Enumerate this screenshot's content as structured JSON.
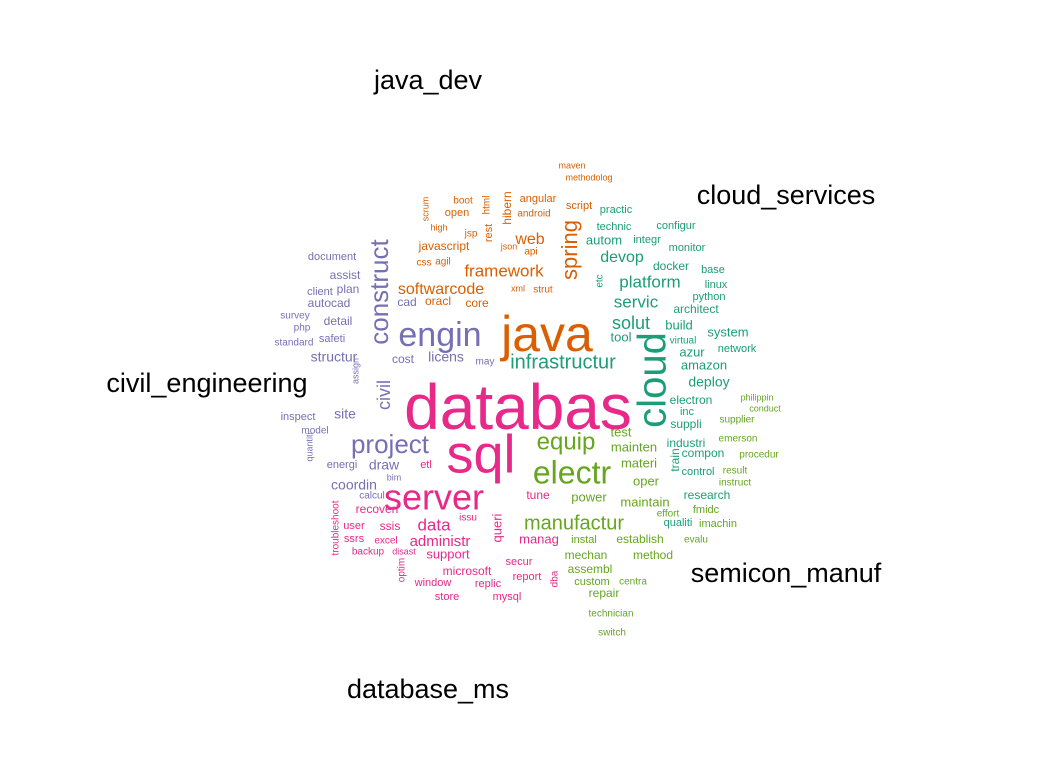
{
  "chart_data": {
    "type": "comparison-wordcloud",
    "groups": [
      {
        "name": "java_dev",
        "color": "#D95F02"
      },
      {
        "name": "cloud_services",
        "color": "#1B9E77"
      },
      {
        "name": "civil_engineering",
        "color": "#7570B3"
      },
      {
        "name": "semicon_manuf",
        "color": "#66A61E"
      },
      {
        "name": "database_ms",
        "color": "#E7298A"
      }
    ],
    "words": [
      {
        "t": "java",
        "g": "java_dev",
        "s": 50
      },
      {
        "t": "spring",
        "g": "java_dev",
        "s": 22
      },
      {
        "t": "framework",
        "g": "java_dev",
        "s": 17
      },
      {
        "t": "softwarcode",
        "g": "java_dev",
        "s": 16
      },
      {
        "t": "web",
        "g": "java_dev",
        "s": 16
      },
      {
        "t": "javascript",
        "g": "java_dev",
        "s": 12
      },
      {
        "t": "hibern",
        "g": "java_dev",
        "s": 12
      },
      {
        "t": "oracl",
        "g": "java_dev",
        "s": 12
      },
      {
        "t": "core",
        "g": "java_dev",
        "s": 12
      },
      {
        "t": "rest",
        "g": "java_dev",
        "s": 11
      },
      {
        "t": "angular",
        "g": "java_dev",
        "s": 11
      },
      {
        "t": "script",
        "g": "java_dev",
        "s": 11
      },
      {
        "t": "open",
        "g": "java_dev",
        "s": 11
      },
      {
        "t": "android",
        "g": "java_dev",
        "s": 10
      },
      {
        "t": "api",
        "g": "java_dev",
        "s": 10
      },
      {
        "t": "html",
        "g": "java_dev",
        "s": 10
      },
      {
        "t": "jsp",
        "g": "java_dev",
        "s": 10
      },
      {
        "t": "boot",
        "g": "java_dev",
        "s": 10
      },
      {
        "t": "agil",
        "g": "java_dev",
        "s": 10
      },
      {
        "t": "css",
        "g": "java_dev",
        "s": 10
      },
      {
        "t": "strut",
        "g": "java_dev",
        "s": 10
      },
      {
        "t": "scrum",
        "g": "java_dev",
        "s": 9
      },
      {
        "t": "json",
        "g": "java_dev",
        "s": 9
      },
      {
        "t": "xml",
        "g": "java_dev",
        "s": 9
      },
      {
        "t": "high",
        "g": "java_dev",
        "s": 9
      },
      {
        "t": "maven",
        "g": "java_dev",
        "s": 9
      },
      {
        "t": "methodolog",
        "g": "java_dev",
        "s": 9
      },
      {
        "t": "cloud",
        "g": "cloud_services",
        "s": 40
      },
      {
        "t": "infrastructur",
        "g": "cloud_services",
        "s": 20
      },
      {
        "t": "solut",
        "g": "cloud_services",
        "s": 18
      },
      {
        "t": "servic",
        "g": "cloud_services",
        "s": 17
      },
      {
        "t": "platform",
        "g": "cloud_services",
        "s": 17
      },
      {
        "t": "devop",
        "g": "cloud_services",
        "s": 16
      },
      {
        "t": "system",
        "g": "cloud_services",
        "s": 13
      },
      {
        "t": "build",
        "g": "cloud_services",
        "s": 13
      },
      {
        "t": "tool",
        "g": "cloud_services",
        "s": 13
      },
      {
        "t": "azur",
        "g": "cloud_services",
        "s": 13
      },
      {
        "t": "amazon",
        "g": "cloud_services",
        "s": 13
      },
      {
        "t": "deploy",
        "g": "cloud_services",
        "s": 14
      },
      {
        "t": "autom",
        "g": "cloud_services",
        "s": 13
      },
      {
        "t": "docker",
        "g": "cloud_services",
        "s": 12
      },
      {
        "t": "architect",
        "g": "cloud_services",
        "s": 12
      },
      {
        "t": "linux",
        "g": "cloud_services",
        "s": 11
      },
      {
        "t": "python",
        "g": "cloud_services",
        "s": 11
      },
      {
        "t": "base",
        "g": "cloud_services",
        "s": 11
      },
      {
        "t": "monitor",
        "g": "cloud_services",
        "s": 11
      },
      {
        "t": "configur",
        "g": "cloud_services",
        "s": 11
      },
      {
        "t": "integr",
        "g": "cloud_services",
        "s": 11
      },
      {
        "t": "technic",
        "g": "cloud_services",
        "s": 11
      },
      {
        "t": "practic",
        "g": "cloud_services",
        "s": 11
      },
      {
        "t": "network",
        "g": "cloud_services",
        "s": 11
      },
      {
        "t": "virtual",
        "g": "cloud_services",
        "s": 10
      },
      {
        "t": "etc",
        "g": "cloud_services",
        "s": 10
      },
      {
        "t": "electron",
        "g": "cloud_services",
        "s": 12
      },
      {
        "t": "suppli",
        "g": "cloud_services",
        "s": 12
      },
      {
        "t": "inc",
        "g": "cloud_services",
        "s": 11
      },
      {
        "t": "industri",
        "g": "cloud_services",
        "s": 12
      },
      {
        "t": "compon",
        "g": "cloud_services",
        "s": 12
      },
      {
        "t": "train",
        "g": "cloud_services",
        "s": 12
      },
      {
        "t": "control",
        "g": "cloud_services",
        "s": 11
      },
      {
        "t": "research",
        "g": "cloud_services",
        "s": 12
      },
      {
        "t": "qualiti",
        "g": "cloud_services",
        "s": 11
      },
      {
        "t": "construct",
        "g": "civil_engineering",
        "s": 26
      },
      {
        "t": "engin",
        "g": "civil_engineering",
        "s": 34
      },
      {
        "t": "project",
        "g": "civil_engineering",
        "s": 26
      },
      {
        "t": "civil",
        "g": "civil_engineering",
        "s": 18
      },
      {
        "t": "structur",
        "g": "civil_engineering",
        "s": 14
      },
      {
        "t": "site",
        "g": "civil_engineering",
        "s": 14
      },
      {
        "t": "draw",
        "g": "civil_engineering",
        "s": 14
      },
      {
        "t": "coordin",
        "g": "civil_engineering",
        "s": 14
      },
      {
        "t": "licens",
        "g": "civil_engineering",
        "s": 14
      },
      {
        "t": "autocad",
        "g": "civil_engineering",
        "s": 12
      },
      {
        "t": "detail",
        "g": "civil_engineering",
        "s": 12
      },
      {
        "t": "assist",
        "g": "civil_engineering",
        "s": 12
      },
      {
        "t": "plan",
        "g": "civil_engineering",
        "s": 12
      },
      {
        "t": "cad",
        "g": "civil_engineering",
        "s": 12
      },
      {
        "t": "cost",
        "g": "civil_engineering",
        "s": 12
      },
      {
        "t": "safeti",
        "g": "civil_engineering",
        "s": 11
      },
      {
        "t": "client",
        "g": "civil_engineering",
        "s": 11
      },
      {
        "t": "document",
        "g": "civil_engineering",
        "s": 11
      },
      {
        "t": "survey",
        "g": "civil_engineering",
        "s": 10
      },
      {
        "t": "php",
        "g": "civil_engineering",
        "s": 10
      },
      {
        "t": "standard",
        "g": "civil_engineering",
        "s": 10
      },
      {
        "t": "inspect",
        "g": "civil_engineering",
        "s": 11
      },
      {
        "t": "model",
        "g": "civil_engineering",
        "s": 10
      },
      {
        "t": "energi",
        "g": "civil_engineering",
        "s": 11
      },
      {
        "t": "quantiti",
        "g": "civil_engineering",
        "s": 9
      },
      {
        "t": "assign",
        "g": "civil_engineering",
        "s": 9
      },
      {
        "t": "calcul",
        "g": "civil_engineering",
        "s": 10
      },
      {
        "t": "bim",
        "g": "civil_engineering",
        "s": 9
      },
      {
        "t": "may",
        "g": "civil_engineering",
        "s": 10
      },
      {
        "t": "electr",
        "g": "semicon_manuf",
        "s": 32
      },
      {
        "t": "equip",
        "g": "semicon_manuf",
        "s": 24
      },
      {
        "t": "manufactur",
        "g": "semicon_manuf",
        "s": 20
      },
      {
        "t": "materi",
        "g": "semicon_manuf",
        "s": 13
      },
      {
        "t": "mainten",
        "g": "semicon_manuf",
        "s": 13
      },
      {
        "t": "test",
        "g": "semicon_manuf",
        "s": 13
      },
      {
        "t": "oper",
        "g": "semicon_manuf",
        "s": 13
      },
      {
        "t": "maintain",
        "g": "semicon_manuf",
        "s": 13
      },
      {
        "t": "power",
        "g": "semicon_manuf",
        "s": 13
      },
      {
        "t": "establish",
        "g": "semicon_manuf",
        "s": 12
      },
      {
        "t": "mechan",
        "g": "semicon_manuf",
        "s": 12
      },
      {
        "t": "method",
        "g": "semicon_manuf",
        "s": 12
      },
      {
        "t": "assembl",
        "g": "semicon_manuf",
        "s": 12
      },
      {
        "t": "instal",
        "g": "semicon_manuf",
        "s": 11
      },
      {
        "t": "custom",
        "g": "semicon_manuf",
        "s": 11
      },
      {
        "t": "repair",
        "g": "semicon_manuf",
        "s": 12
      },
      {
        "t": "centra",
        "g": "semicon_manuf",
        "s": 10
      },
      {
        "t": "technician",
        "g": "semicon_manuf",
        "s": 10
      },
      {
        "t": "switch",
        "g": "semicon_manuf",
        "s": 10
      },
      {
        "t": "fmidc",
        "g": "semicon_manuf",
        "s": 11
      },
      {
        "t": "imachin",
        "g": "semicon_manuf",
        "s": 11
      },
      {
        "t": "evalu",
        "g": "semicon_manuf",
        "s": 10
      },
      {
        "t": "effort",
        "g": "semicon_manuf",
        "s": 10
      },
      {
        "t": "result",
        "g": "semicon_manuf",
        "s": 10
      },
      {
        "t": "instruct",
        "g": "semicon_manuf",
        "s": 10
      },
      {
        "t": "procedur",
        "g": "semicon_manuf",
        "s": 10
      },
      {
        "t": "emerson",
        "g": "semicon_manuf",
        "s": 10
      },
      {
        "t": "supplier",
        "g": "semicon_manuf",
        "s": 10
      },
      {
        "t": "conduct",
        "g": "semicon_manuf",
        "s": 9
      },
      {
        "t": "philippin",
        "g": "semicon_manuf",
        "s": 9
      },
      {
        "t": "databas",
        "g": "database_ms",
        "s": 64
      },
      {
        "t": "sql",
        "g": "database_ms",
        "s": 54
      },
      {
        "t": "server",
        "g": "database_ms",
        "s": 36
      },
      {
        "t": "data",
        "g": "database_ms",
        "s": 17
      },
      {
        "t": "administr",
        "g": "database_ms",
        "s": 15
      },
      {
        "t": "support",
        "g": "database_ms",
        "s": 13
      },
      {
        "t": "manag",
        "g": "database_ms",
        "s": 13
      },
      {
        "t": "queri",
        "g": "database_ms",
        "s": 13
      },
      {
        "t": "recoveri",
        "g": "database_ms",
        "s": 12
      },
      {
        "t": "ssis",
        "g": "database_ms",
        "s": 12
      },
      {
        "t": "microsoft",
        "g": "database_ms",
        "s": 12
      },
      {
        "t": "tune",
        "g": "database_ms",
        "s": 12
      },
      {
        "t": "report",
        "g": "database_ms",
        "s": 11
      },
      {
        "t": "secur",
        "g": "database_ms",
        "s": 11
      },
      {
        "t": "window",
        "g": "database_ms",
        "s": 11
      },
      {
        "t": "replic",
        "g": "database_ms",
        "s": 11
      },
      {
        "t": "mysql",
        "g": "database_ms",
        "s": 11
      },
      {
        "t": "store",
        "g": "database_ms",
        "s": 11
      },
      {
        "t": "user",
        "g": "database_ms",
        "s": 11
      },
      {
        "t": "ssrs",
        "g": "database_ms",
        "s": 11
      },
      {
        "t": "excel",
        "g": "database_ms",
        "s": 10
      },
      {
        "t": "backup",
        "g": "database_ms",
        "s": 10
      },
      {
        "t": "disast",
        "g": "database_ms",
        "s": 9
      },
      {
        "t": "troubleshoot",
        "g": "database_ms",
        "s": 10
      },
      {
        "t": "optim",
        "g": "database_ms",
        "s": 10
      },
      {
        "t": "issu",
        "g": "database_ms",
        "s": 10
      },
      {
        "t": "etl",
        "g": "database_ms",
        "s": 11
      },
      {
        "t": "dba",
        "g": "database_ms",
        "s": 10
      }
    ]
  }
}
